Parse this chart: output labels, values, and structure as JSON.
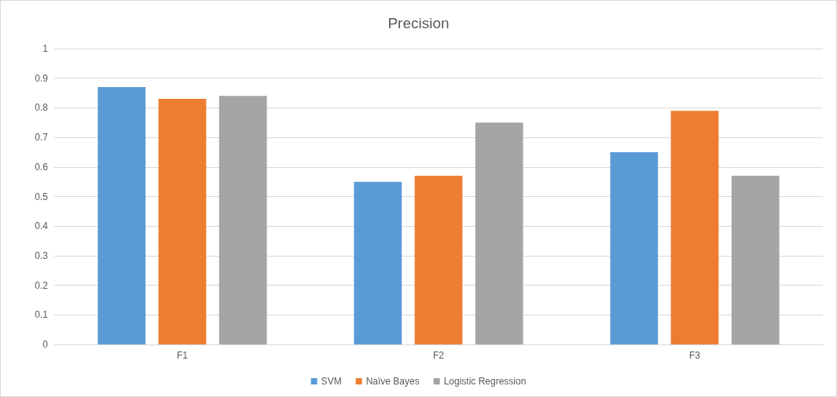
{
  "chart_data": {
    "type": "bar",
    "title": "Precision",
    "categories": [
      "F1",
      "F2",
      "F3"
    ],
    "series": [
      {
        "name": "SVM",
        "color": "#5b9bd5",
        "values": [
          0.87,
          0.55,
          0.65
        ]
      },
      {
        "name": "Naïve Bayes",
        "color": "#ed7d31",
        "values": [
          0.83,
          0.57,
          0.79
        ]
      },
      {
        "name": "Logistic Regression",
        "color": "#a5a5a5",
        "values": [
          0.84,
          0.75,
          0.57
        ]
      }
    ],
    "ylim": [
      0,
      1
    ],
    "yticks": [
      0,
      0.1,
      0.2,
      0.3,
      0.4,
      0.5,
      0.6,
      0.7,
      0.8,
      0.9,
      1
    ],
    "grid": "y",
    "legend": "bottom"
  }
}
